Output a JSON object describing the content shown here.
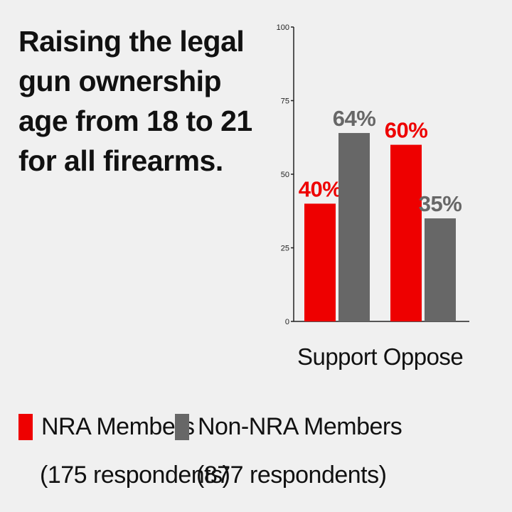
{
  "title_lines": [
    "Raising the legal",
    "gun ownership",
    "age from 18 to 21",
    "for all firearms."
  ],
  "colors": {
    "nra": "#ee0000",
    "non_nra": "#676767",
    "axis": "#222222",
    "background": "#f0f0f0"
  },
  "legend": [
    {
      "label": "NRA Members",
      "sub": "(175 respondents)",
      "color_key": "nra"
    },
    {
      "label": "Non-NRA Members",
      "sub": "(877 respondents)",
      "color_key": "non_nra"
    }
  ],
  "chart_data": {
    "type": "bar",
    "title": "Raising the legal gun ownership age from 18 to 21 for all firearms.",
    "categories": [
      "Support",
      "Oppose"
    ],
    "series": [
      {
        "name": "NRA Members",
        "values": [
          40,
          60
        ],
        "labels": [
          "40%",
          "60%"
        ],
        "color": "#ee0000"
      },
      {
        "name": "Non-NRA Members",
        "values": [
          64,
          35
        ],
        "labels": [
          "64%",
          "35%"
        ],
        "color": "#676767"
      }
    ],
    "yticks": [
      0,
      25,
      50,
      75,
      100
    ],
    "ylim": [
      0,
      100
    ],
    "xlabel": "",
    "ylabel": "",
    "grid": false,
    "legend_position": "bottom"
  }
}
